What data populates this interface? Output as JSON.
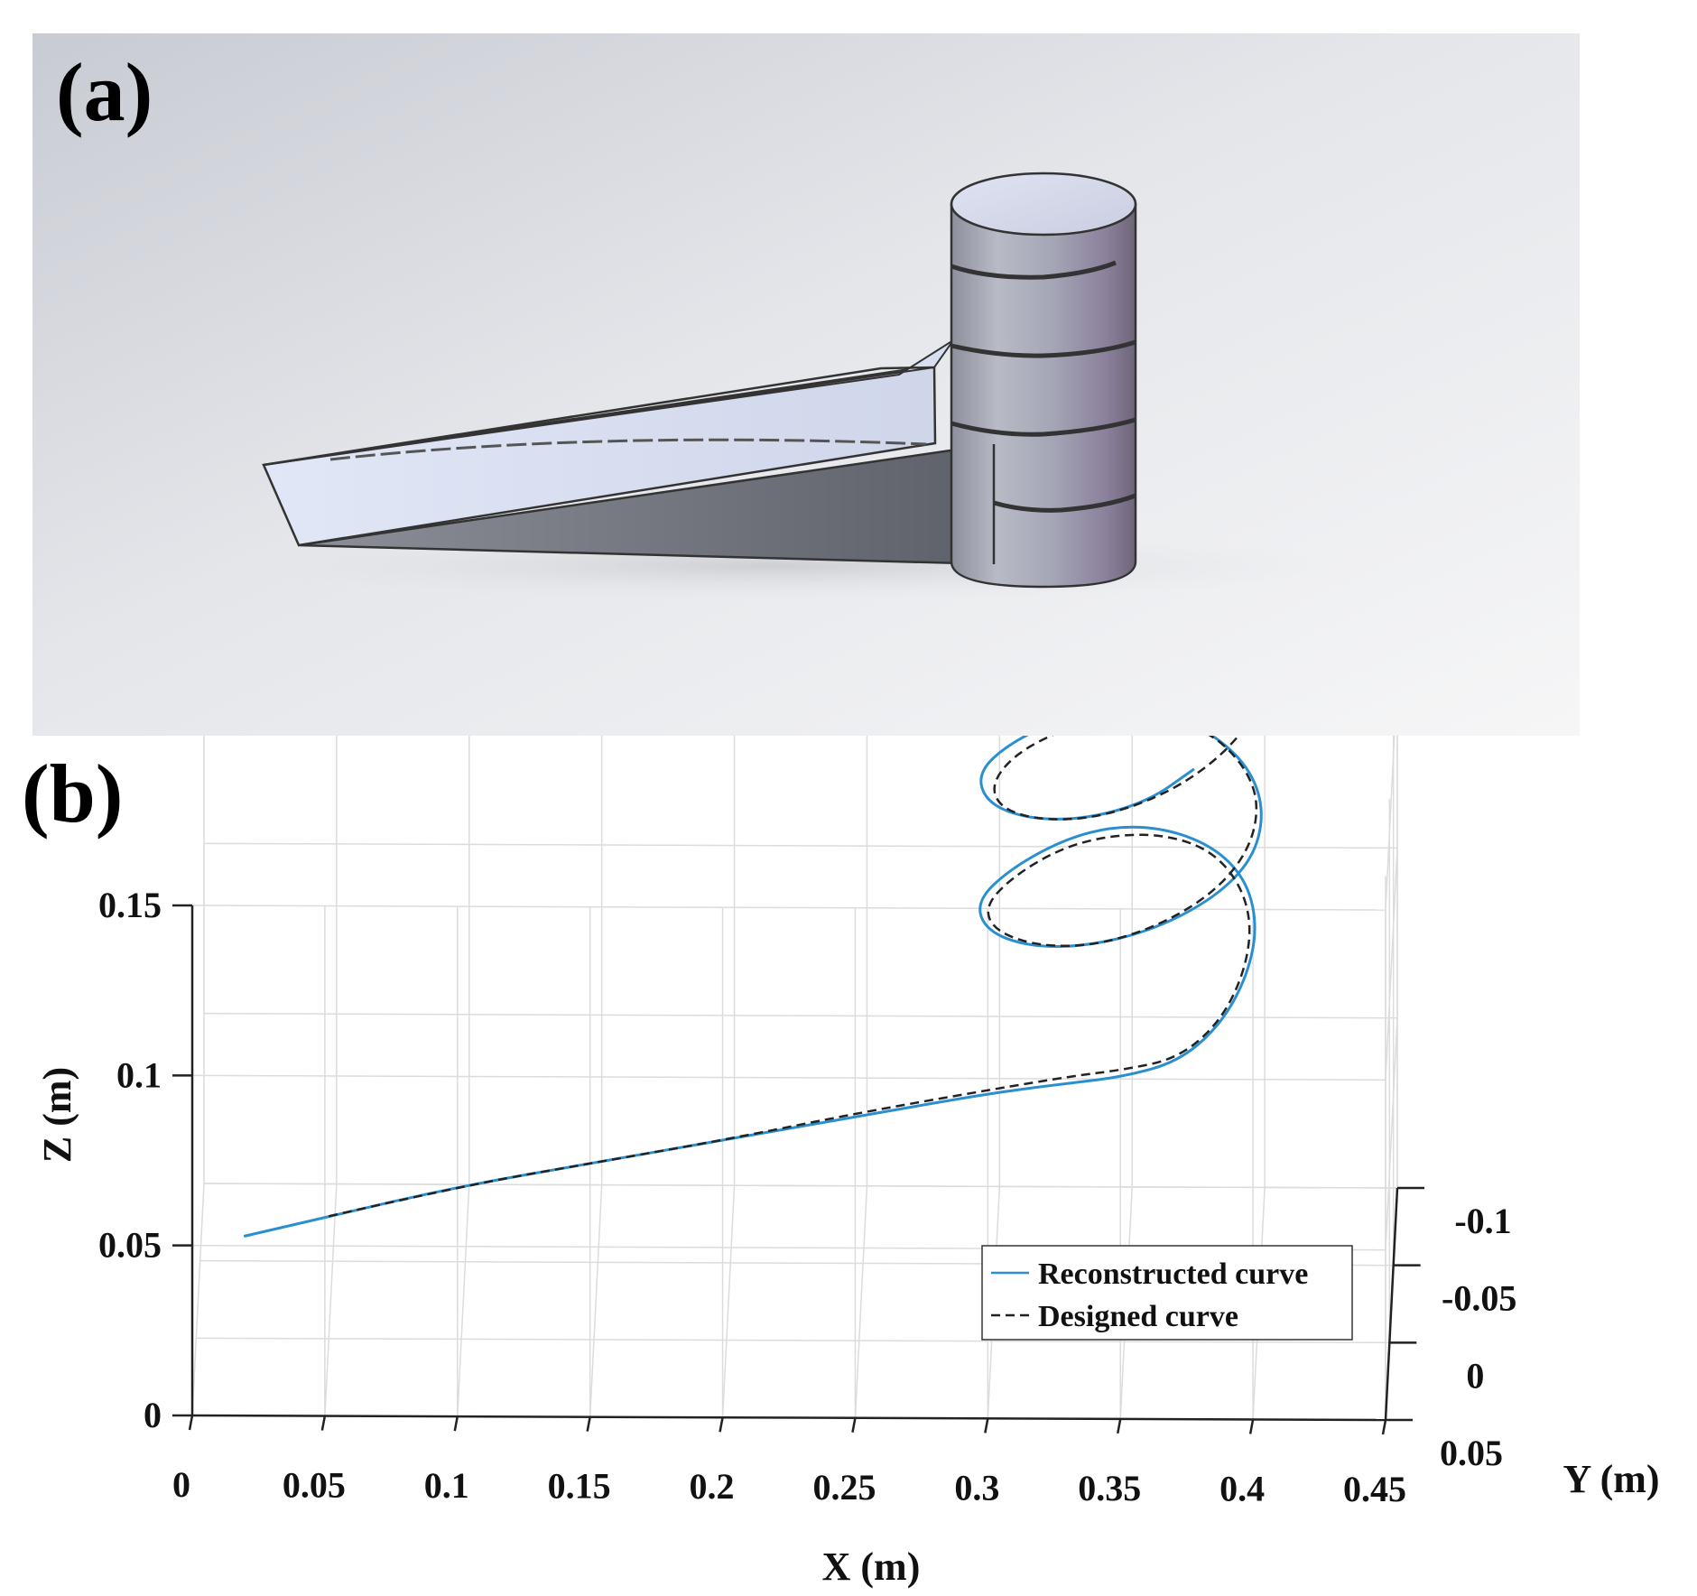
{
  "panels": {
    "a": {
      "label": "(a)",
      "model_name": "wedge-with-helical-cylinder"
    },
    "b": {
      "label": "(b)"
    }
  },
  "colors": {
    "reconstructed": "#2a8fd0",
    "designed": "#222222",
    "grid": "#dcdcdc"
  },
  "chart_data": {
    "type": "line",
    "projection": "3d",
    "xlabel": "X (m)",
    "ylabel": "Y (m)",
    "zlabel": "Z (m)",
    "xticks": [
      "0",
      "0.05",
      "0.1",
      "0.15",
      "0.2",
      "0.25",
      "0.3",
      "0.35",
      "0.4",
      "0.45"
    ],
    "yticks": [
      "0.05",
      "0",
      "-0.05",
      "-0.1"
    ],
    "zticks": [
      "0",
      "0.05",
      "0.1",
      "0.15"
    ],
    "xlim": [
      0,
      0.45
    ],
    "ylim": [
      -0.1,
      0.05
    ],
    "zlim": [
      0,
      0.15
    ],
    "grid": true,
    "legend_position": "lower-right",
    "series": [
      {
        "name": "Reconstructed curve",
        "style": "solid",
        "color": "#2a8fd0",
        "points": [
          [
            0.018,
            0.0,
            0.03
          ],
          [
            0.05,
            0.0,
            0.036
          ],
          [
            0.1,
            0.0,
            0.045
          ],
          [
            0.15,
            0.0,
            0.052
          ],
          [
            0.2,
            0.0,
            0.059
          ],
          [
            0.25,
            0.0,
            0.066
          ],
          [
            0.3,
            0.0,
            0.073
          ],
          [
            0.33,
            0.0,
            0.076
          ],
          [
            0.35,
            0.0,
            0.078
          ],
          [
            0.37,
            -0.003,
            0.081
          ],
          [
            0.385,
            -0.012,
            0.087
          ],
          [
            0.395,
            -0.025,
            0.095
          ],
          [
            0.399,
            -0.04,
            0.103
          ],
          [
            0.395,
            -0.055,
            0.11
          ],
          [
            0.383,
            -0.066,
            0.115
          ],
          [
            0.365,
            -0.072,
            0.118
          ],
          [
            0.345,
            -0.072,
            0.119
          ],
          [
            0.325,
            -0.065,
            0.118
          ],
          [
            0.305,
            -0.052,
            0.115
          ],
          [
            0.293,
            -0.04,
            0.111
          ],
          [
            0.297,
            -0.028,
            0.108
          ],
          [
            0.313,
            -0.02,
            0.107
          ],
          [
            0.335,
            -0.018,
            0.108
          ],
          [
            0.36,
            -0.022,
            0.111
          ],
          [
            0.383,
            -0.032,
            0.116
          ],
          [
            0.397,
            -0.046,
            0.121
          ],
          [
            0.401,
            -0.06,
            0.128
          ],
          [
            0.396,
            -0.072,
            0.135
          ],
          [
            0.383,
            -0.081,
            0.141
          ],
          [
            0.365,
            -0.085,
            0.146
          ],
          [
            0.345,
            -0.085,
            0.148
          ],
          [
            0.325,
            -0.078,
            0.148
          ],
          [
            0.305,
            -0.066,
            0.146
          ],
          [
            0.293,
            -0.053,
            0.143
          ],
          [
            0.297,
            -0.04,
            0.14
          ],
          [
            0.313,
            -0.032,
            0.139
          ],
          [
            0.335,
            -0.03,
            0.14
          ],
          [
            0.358,
            -0.035,
            0.143
          ],
          [
            0.375,
            -0.045,
            0.148
          ]
        ]
      },
      {
        "name": "Designed curve",
        "style": "dashed",
        "color": "#222222",
        "points": [
          [
            0.05,
            0.0,
            0.036
          ],
          [
            0.1,
            0.0,
            0.045
          ],
          [
            0.15,
            0.0,
            0.052
          ],
          [
            0.2,
            0.0,
            0.059
          ],
          [
            0.25,
            0.0,
            0.067
          ],
          [
            0.3,
            0.0,
            0.074
          ],
          [
            0.33,
            0.0,
            0.078
          ],
          [
            0.35,
            0.0,
            0.08
          ],
          [
            0.37,
            -0.003,
            0.082
          ],
          [
            0.385,
            -0.012,
            0.088
          ],
          [
            0.394,
            -0.025,
            0.096
          ],
          [
            0.397,
            -0.04,
            0.104
          ],
          [
            0.392,
            -0.055,
            0.11
          ],
          [
            0.38,
            -0.066,
            0.115
          ],
          [
            0.362,
            -0.071,
            0.117
          ],
          [
            0.342,
            -0.07,
            0.117
          ],
          [
            0.323,
            -0.063,
            0.116
          ],
          [
            0.305,
            -0.05,
            0.113
          ],
          [
            0.296,
            -0.038,
            0.11
          ],
          [
            0.301,
            -0.027,
            0.108
          ],
          [
            0.318,
            -0.02,
            0.107
          ],
          [
            0.34,
            -0.019,
            0.108
          ],
          [
            0.364,
            -0.024,
            0.112
          ],
          [
            0.384,
            -0.035,
            0.117
          ],
          [
            0.396,
            -0.049,
            0.123
          ],
          [
            0.399,
            -0.063,
            0.13
          ],
          [
            0.393,
            -0.074,
            0.136
          ],
          [
            0.38,
            -0.082,
            0.142
          ],
          [
            0.362,
            -0.085,
            0.145
          ],
          [
            0.342,
            -0.083,
            0.146
          ],
          [
            0.323,
            -0.076,
            0.145
          ],
          [
            0.306,
            -0.064,
            0.143
          ],
          [
            0.298,
            -0.051,
            0.14
          ],
          [
            0.303,
            -0.04,
            0.138
          ],
          [
            0.32,
            -0.033,
            0.138
          ],
          [
            0.342,
            -0.032,
            0.14
          ],
          [
            0.365,
            -0.038,
            0.144
          ],
          [
            0.383,
            -0.048,
            0.149
          ],
          [
            0.395,
            -0.058,
            0.155
          ]
        ]
      }
    ]
  }
}
